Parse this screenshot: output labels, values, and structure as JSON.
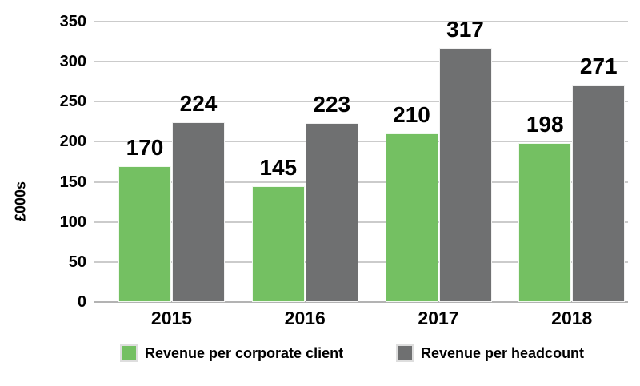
{
  "chart_data": {
    "type": "bar",
    "title": "",
    "ylabel": "£000s",
    "xlabel": "",
    "ylim": [
      0,
      350
    ],
    "yticks": [
      0,
      50,
      100,
      150,
      200,
      250,
      300,
      350
    ],
    "grid": true,
    "legend_position": "bottom",
    "categories": [
      "2015",
      "2016",
      "2017",
      "2018"
    ],
    "series": [
      {
        "name": "Revenue per corporate client",
        "color": "#74c062",
        "values": [
          170,
          145,
          210,
          198
        ]
      },
      {
        "name": "Revenue per headcount",
        "color": "#6f7071",
        "values": [
          224,
          223,
          317,
          271
        ]
      }
    ]
  }
}
